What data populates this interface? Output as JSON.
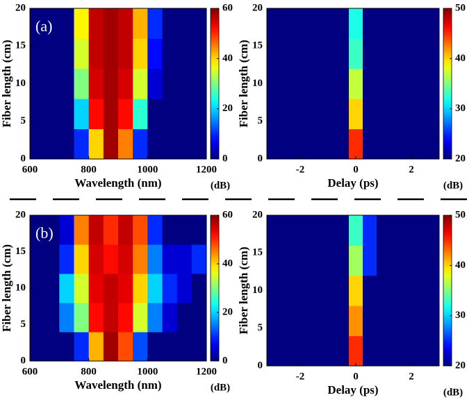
{
  "chart_data": [
    {
      "type": "heatmap",
      "panel_label": "(a)",
      "xlabel": "Wavelength (nm)",
      "ylabel": "Fiber length (cm)",
      "xlim": [
        600,
        1200
      ],
      "ylim": [
        0,
        20
      ],
      "xticks": [
        600,
        800,
        1000,
        1200
      ],
      "yticks": [
        0,
        5,
        10,
        15,
        20
      ],
      "x": [
        625,
        675,
        725,
        775,
        825,
        875,
        925,
        975,
        1025,
        1075,
        1125,
        1175
      ],
      "y": [
        2,
        6,
        10,
        14,
        18
      ],
      "z": [
        [
          0,
          0,
          0,
          10,
          40,
          58,
          45,
          10,
          0,
          0,
          0,
          0
        ],
        [
          0,
          0,
          0,
          20,
          52,
          58,
          52,
          25,
          0,
          0,
          0,
          0
        ],
        [
          0,
          0,
          0,
          30,
          55,
          58,
          55,
          35,
          5,
          0,
          0,
          0
        ],
        [
          0,
          0,
          0,
          35,
          56,
          58,
          56,
          40,
          8,
          0,
          0,
          0
        ],
        [
          0,
          0,
          0,
          38,
          56,
          58,
          56,
          42,
          10,
          0,
          0,
          0
        ]
      ],
      "colormap": "jet",
      "zlim": [
        0,
        60
      ],
      "zticks": [
        0,
        20,
        40,
        60
      ],
      "colorbar_label": "(dB)"
    },
    {
      "type": "heatmap",
      "xlabel": "Delay (ps)",
      "ylabel": "Fiber length (cm)",
      "xlim": [
        -3.2,
        3
      ],
      "ylim": [
        0,
        20
      ],
      "xticks": [
        -2,
        0,
        2
      ],
      "yticks": [
        0,
        5,
        10,
        15,
        20
      ],
      "x": [
        -3,
        -2.5,
        -2,
        -1.5,
        -1,
        -0.5,
        0,
        0.5,
        1,
        1.5,
        2,
        2.5
      ],
      "y": [
        2,
        6,
        10,
        14,
        18
      ],
      "z": [
        [
          20,
          20,
          20,
          20,
          20,
          20,
          45,
          20,
          20,
          20,
          20,
          20
        ],
        [
          20,
          20,
          20,
          20,
          20,
          20,
          40,
          20,
          20,
          20,
          20,
          20
        ],
        [
          20,
          20,
          20,
          20,
          20,
          20,
          37,
          20,
          20,
          20,
          20,
          20
        ],
        [
          20,
          20,
          20,
          20,
          20,
          20,
          33,
          20,
          20,
          20,
          20,
          20
        ],
        [
          20,
          20,
          20,
          20,
          20,
          20,
          32,
          20,
          20,
          20,
          20,
          20
        ]
      ],
      "colormap": "jet",
      "zlim": [
        20,
        50
      ],
      "zticks": [
        20,
        30,
        40,
        50
      ],
      "colorbar_label": "(dB)"
    },
    {
      "type": "heatmap",
      "panel_label": "(b)",
      "xlabel": "Wavelength (nm)",
      "ylabel": "Fiber length (cm)",
      "xlim": [
        600,
        1200
      ],
      "ylim": [
        0,
        20
      ],
      "xticks": [
        600,
        800,
        1000,
        1200
      ],
      "yticks": [
        0,
        5,
        10,
        15,
        20
      ],
      "x": [
        625,
        675,
        725,
        775,
        825,
        875,
        925,
        975,
        1025,
        1075,
        1125,
        1175
      ],
      "y": [
        2,
        6,
        10,
        14,
        18
      ],
      "z": [
        [
          0,
          0,
          0,
          10,
          42,
          58,
          48,
          12,
          0,
          0,
          0,
          0
        ],
        [
          0,
          0,
          15,
          30,
          52,
          56,
          52,
          35,
          15,
          5,
          0,
          0
        ],
        [
          0,
          0,
          20,
          35,
          54,
          56,
          54,
          40,
          20,
          10,
          5,
          0
        ],
        [
          0,
          0,
          10,
          40,
          55,
          52,
          55,
          45,
          15,
          5,
          5,
          10
        ],
        [
          0,
          0,
          5,
          45,
          56,
          50,
          56,
          48,
          10,
          0,
          0,
          0
        ]
      ],
      "colormap": "jet",
      "zlim": [
        0,
        60
      ],
      "zticks": [
        0,
        20,
        40,
        60
      ],
      "colorbar_label": "(dB)"
    },
    {
      "type": "heatmap",
      "xlabel": "Delay (ps)",
      "ylabel": "Fiber length (cm)",
      "xlim": [
        -3.2,
        3
      ],
      "ylim": [
        0,
        20
      ],
      "xticks": [
        -2,
        0,
        2
      ],
      "yticks": [
        0,
        5,
        10,
        15,
        20
      ],
      "x": [
        -3,
        -2.5,
        -2,
        -1.5,
        -1,
        -0.5,
        0,
        0.5,
        1,
        1.5,
        2,
        2.5
      ],
      "y": [
        2,
        6,
        10,
        14,
        18
      ],
      "z": [
        [
          20,
          20,
          20,
          20,
          20,
          20,
          45,
          20,
          20,
          20,
          20,
          20
        ],
        [
          20,
          20,
          20,
          20,
          20,
          20,
          42,
          20,
          20,
          20,
          20,
          20
        ],
        [
          20,
          20,
          20,
          20,
          20,
          20,
          40,
          20,
          20,
          20,
          20,
          20
        ],
        [
          20,
          20,
          20,
          20,
          20,
          20,
          36,
          25,
          20,
          20,
          20,
          20
        ],
        [
          20,
          20,
          20,
          20,
          20,
          20,
          33,
          25,
          20,
          20,
          20,
          20
        ]
      ],
      "colormap": "jet",
      "zlim": [
        20,
        50
      ],
      "zticks": [
        20,
        30,
        40,
        50
      ],
      "colorbar_label": "(dB)"
    }
  ]
}
